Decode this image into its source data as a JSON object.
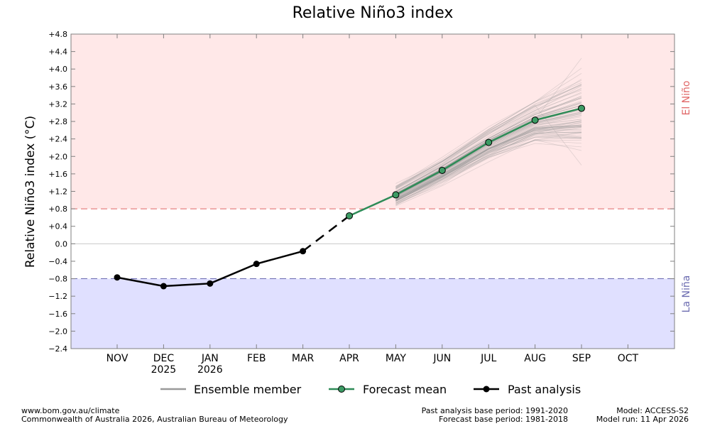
{
  "chart_data": {
    "type": "line",
    "title": "Relative Niño3 index",
    "ylabel": "Relative Niño3 index (°C)",
    "ylim": [
      -2.4,
      4.8
    ],
    "y_ticks": [
      4.8,
      4.4,
      4.0,
      3.6,
      3.2,
      2.8,
      2.4,
      2.0,
      1.6,
      1.2,
      0.8,
      0.4,
      0.0,
      -0.4,
      -0.8,
      -1.2,
      -1.6,
      -2.0,
      -2.4
    ],
    "y_tick_labels": [
      "+4.8",
      "+4.4",
      "+4.0",
      "+3.6",
      "+3.2",
      "+2.8",
      "+2.4",
      "+2.0",
      "+1.6",
      "+1.2",
      "+0.8",
      "+0.4",
      "0.0",
      "−0.4",
      "−0.8",
      "−1.2",
      "−1.6",
      "−2.0",
      "−2.4"
    ],
    "months": [
      "NOV",
      "DEC",
      "JAN",
      "FEB",
      "MAR",
      "APR",
      "MAY",
      "JUN",
      "JUL",
      "AUG",
      "SEP",
      "OCT"
    ],
    "year_labels": [
      {
        "month": "DEC",
        "label": "2025"
      },
      {
        "month": "JAN",
        "label": "2026"
      }
    ],
    "thresholds": {
      "el_nino": 0.8,
      "la_nina": -0.8
    },
    "zone_labels": {
      "el_nino": "El Niño",
      "la_nina": "La Niña"
    },
    "series": [
      {
        "name": "Past analysis",
        "x": [
          "NOV",
          "DEC",
          "JAN",
          "FEB",
          "MAR"
        ],
        "values": [
          -0.77,
          -0.97,
          -0.91,
          -0.46,
          -0.17
        ]
      },
      {
        "name": "Forecast mean",
        "x": [
          "APR",
          "MAY",
          "JUN",
          "JUL",
          "AUG",
          "SEP"
        ],
        "values": [
          0.64,
          1.12,
          1.68,
          2.32,
          2.83,
          3.1
        ]
      }
    ],
    "ensemble_range": {
      "MAY": [
        0.8,
        1.5
      ],
      "JUN": [
        1.3,
        2.1
      ],
      "JUL": [
        1.7,
        2.8
      ],
      "AUG": [
        2.0,
        3.5
      ],
      "SEP": [
        1.8,
        4.25
      ]
    },
    "legend": [
      "Ensemble member",
      "Forecast mean",
      "Past analysis"
    ],
    "legend_position": "bottom",
    "colors": {
      "el_nino_bg": "#ffe8e8",
      "la_nina_bg": "#e0e0ff",
      "el_nino_line": "#e06666",
      "la_nina_line": "#6b6bb0",
      "forecast": "#2e8b57",
      "forecast_marker": "#3c9b64",
      "past": "#000000",
      "ensemble": "#999999",
      "el_nino_text": "#e06666",
      "la_nina_text": "#6b6bb0"
    }
  },
  "footer": {
    "left_line1": "www.bom.gov.au/climate",
    "left_line2": "Commonwealth of Australia 2026, Australian Bureau of Meteorology",
    "mid_line1": "Past analysis base period: 1991-2020",
    "mid_line2": "Forecast base period: 1981-2018",
    "right_line1": "Model: ACCESS-S2",
    "right_line2": "Model run: 11 Apr 2026"
  }
}
